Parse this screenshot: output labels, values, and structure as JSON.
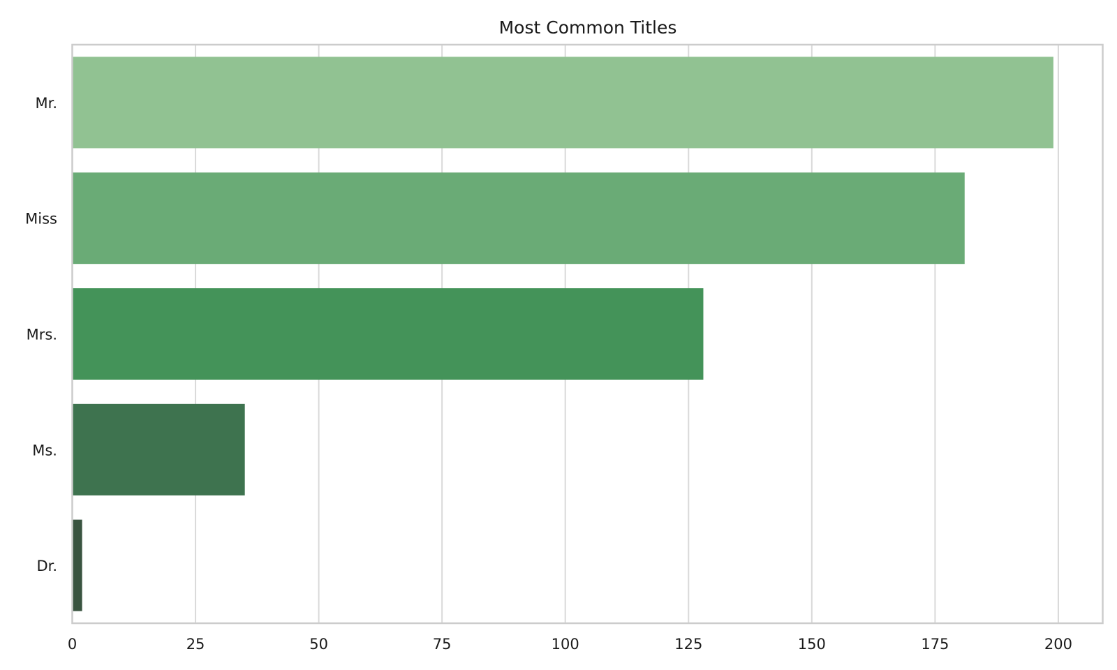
{
  "chart_data": {
    "type": "bar",
    "orientation": "horizontal",
    "title": "Most Common Titles",
    "xlabel": "",
    "ylabel": "",
    "categories": [
      "Mr.",
      "Miss",
      "Mrs.",
      "Ms.",
      "Dr."
    ],
    "values": [
      199,
      181,
      128,
      35,
      2
    ],
    "colors": [
      "#91c292",
      "#6aab76",
      "#449359",
      "#3e734f",
      "#395440"
    ],
    "xlim": [
      0,
      209
    ],
    "xticks": [
      0,
      25,
      50,
      75,
      100,
      125,
      150,
      175,
      200
    ],
    "grid": "vertical",
    "legend": "none"
  }
}
